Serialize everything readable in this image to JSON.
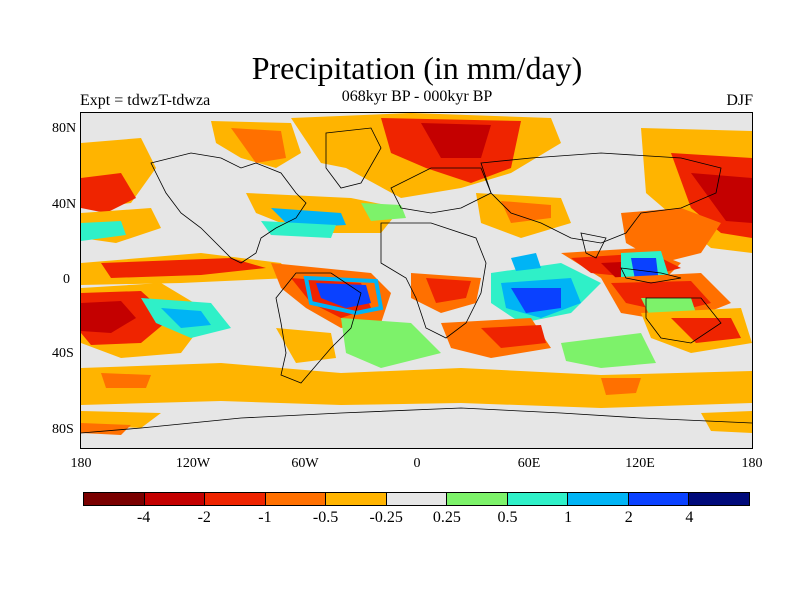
{
  "title": "Precipitation (in mm/day)",
  "subtitle_left": "Expt = tdwzT-tdwza",
  "subtitle_center": "068kyr BP - 000kyr BP",
  "subtitle_right": "DJF",
  "lat_labels": [
    "80N",
    "40N",
    "0",
    "40S",
    "80S"
  ],
  "lon_labels": [
    "180",
    "120W",
    "60W",
    "0",
    "60E",
    "120E",
    "180"
  ],
  "colorbar": {
    "colors": [
      "#7a0000",
      "#c40000",
      "#ef2400",
      "#ff7000",
      "#ffb400",
      "#e6e6e6",
      "#7df26a",
      "#2ff0c8",
      "#00b4f5",
      "#0a41ff",
      "#000a7a"
    ],
    "labels": [
      "-4",
      "-2",
      "-1",
      "-0.5",
      "-0.25",
      "0.25",
      "0.5",
      "1",
      "2",
      "4"
    ]
  },
  "palette": {
    "background": "#e6e6e6",
    "coastline": "#000000"
  }
}
